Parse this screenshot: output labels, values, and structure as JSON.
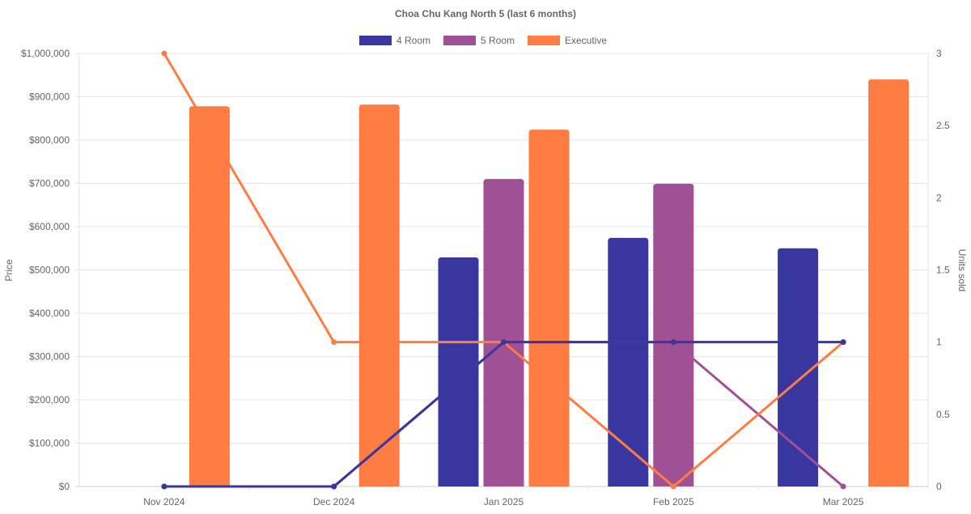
{
  "chart_data": {
    "type": "bar",
    "title": "Choa Chu Kang North 5 (last 6 months)",
    "categories": [
      "Nov 2024",
      "Dec 2024",
      "Jan 2025",
      "Feb 2025",
      "Mar 2025"
    ],
    "ylabel": "Price",
    "y2label": "Units sold",
    "ylim": [
      0,
      1000000
    ],
    "y2lim": [
      0,
      3
    ],
    "yticks": [
      "$0",
      "$100,000",
      "$200,000",
      "$300,000",
      "$400,000",
      "$500,000",
      "$600,000",
      "$700,000",
      "$800,000",
      "$900,000",
      "$1,000,000"
    ],
    "y2ticks": [
      "0",
      "0.5",
      "1",
      "1.5",
      "2",
      "2.5",
      "3"
    ],
    "grid": true,
    "legend": "top",
    "series": [
      {
        "name": "4 Room",
        "color": "#3a36a0",
        "prices": [
          null,
          null,
          529000,
          574000,
          550000
        ],
        "units": [
          0,
          0,
          1,
          1,
          1
        ]
      },
      {
        "name": "5 Room",
        "color": "#a05195",
        "prices": [
          null,
          null,
          710000,
          699000,
          null
        ],
        "units": [
          0,
          0,
          1,
          1,
          0
        ]
      },
      {
        "name": "Executive",
        "color": "#ff7c43",
        "prices": [
          878000,
          882000,
          824000,
          null,
          940000
        ],
        "units": [
          3,
          1,
          1,
          0,
          1
        ]
      }
    ]
  }
}
